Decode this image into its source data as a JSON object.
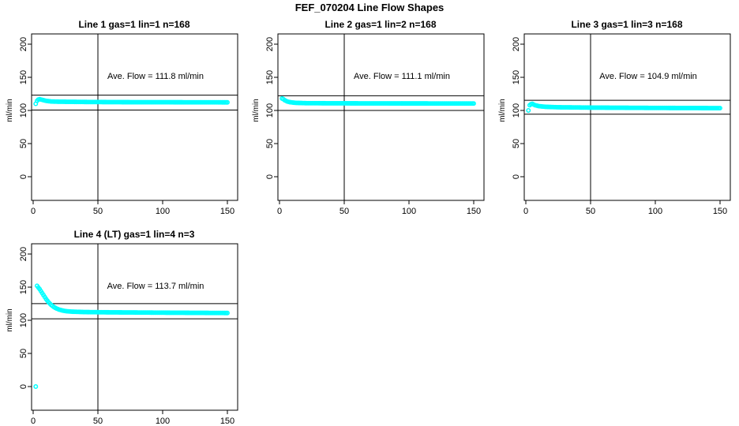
{
  "page": {
    "title": "FEF_070204  Line Flow Shapes"
  },
  "colors": {
    "marker": "#00FFFF",
    "axis": "#000000",
    "background": "#FFFFFF",
    "text": "#000000"
  },
  "chart_data": [
    {
      "type": "scatter",
      "title": "Line 1 gas=1 lin=1 n=168",
      "annotation": "Ave. Flow =  111.8  ml/min",
      "ave_flow_ml_min": 111.8,
      "n": 168,
      "xlabel": "",
      "ylabel": "ml/min",
      "xticks": [
        0,
        50,
        100,
        150
      ],
      "yticks": [
        0,
        50,
        100,
        150,
        200
      ],
      "xlim": [
        -1,
        158
      ],
      "ylim": [
        -36,
        215
      ],
      "grid": false,
      "ref_hlines": [
        123.0,
        100.6
      ],
      "ref_vline": 50,
      "x_range": [
        2,
        150
      ],
      "keypoints": [
        [
          2,
          110
        ],
        [
          3,
          114.5
        ],
        [
          4,
          116.5
        ],
        [
          5,
          117
        ],
        [
          6,
          116.5
        ],
        [
          8,
          115.5
        ],
        [
          10,
          114.5
        ],
        [
          14,
          113.5
        ],
        [
          20,
          113.2
        ],
        [
          40,
          112.8
        ],
        [
          70,
          112.5
        ],
        [
          100,
          112.4
        ],
        [
          150,
          112.2
        ]
      ],
      "extra_points": []
    },
    {
      "type": "scatter",
      "title": "Line 2 gas=1 lin=2 n=168",
      "annotation": "Ave. Flow =  111.1  ml/min",
      "ave_flow_ml_min": 111.1,
      "n": 168,
      "xlabel": "",
      "ylabel": "ml/min",
      "xticks": [
        0,
        50,
        100,
        150
      ],
      "yticks": [
        0,
        50,
        100,
        150,
        200
      ],
      "xlim": [
        -1,
        158
      ],
      "ylim": [
        -36,
        215
      ],
      "grid": false,
      "ref_hlines": [
        122.2,
        100.0
      ],
      "ref_vline": 50,
      "x_range": [
        2,
        150
      ],
      "keypoints": [
        [
          2,
          118
        ],
        [
          3,
          117
        ],
        [
          4,
          115.5
        ],
        [
          6,
          113.5
        ],
        [
          8,
          112.5
        ],
        [
          12,
          111.5
        ],
        [
          20,
          111
        ],
        [
          40,
          110.8
        ],
        [
          80,
          110.6
        ],
        [
          150,
          110.5
        ]
      ],
      "extra_points": []
    },
    {
      "type": "scatter",
      "title": "Line 3 gas=1 lin=3 n=168",
      "annotation": "Ave. Flow =  104.9  ml/min",
      "ave_flow_ml_min": 104.9,
      "n": 168,
      "xlabel": "",
      "ylabel": "ml/min",
      "xticks": [
        0,
        50,
        100,
        150
      ],
      "yticks": [
        0,
        50,
        100,
        150,
        200
      ],
      "xlim": [
        -1,
        158
      ],
      "ylim": [
        -36,
        215
      ],
      "grid": false,
      "ref_hlines": [
        115.4,
        94.4
      ],
      "ref_vline": 50,
      "x_range": [
        2,
        150
      ],
      "keypoints": [
        [
          2,
          100
        ],
        [
          3,
          108
        ],
        [
          4,
          109.5
        ],
        [
          5,
          110
        ],
        [
          7,
          108
        ],
        [
          10,
          106.5
        ],
        [
          15,
          105.5
        ],
        [
          25,
          104.8
        ],
        [
          50,
          104.3
        ],
        [
          100,
          103.8
        ],
        [
          150,
          103.5
        ]
      ],
      "extra_points": []
    },
    {
      "type": "scatter",
      "title": "Line 4 (LT) gas=1 lin=4 n=3",
      "annotation": "Ave. Flow =  113.7  ml/min",
      "ave_flow_ml_min": 113.7,
      "n": 3,
      "xlabel": "",
      "ylabel": "ml/min",
      "xticks": [
        0,
        50,
        100,
        150
      ],
      "yticks": [
        0,
        50,
        100,
        150,
        200
      ],
      "xlim": [
        -1,
        158
      ],
      "ylim": [
        -36,
        215
      ],
      "grid": false,
      "ref_hlines": [
        125.1,
        102.3
      ],
      "ref_vline": 50,
      "x_range": [
        3,
        150
      ],
      "keypoints": [
        [
          3,
          152
        ],
        [
          4,
          149.5
        ],
        [
          5,
          147
        ],
        [
          6,
          144
        ],
        [
          7,
          141
        ],
        [
          8,
          138
        ],
        [
          9,
          135
        ],
        [
          10,
          132
        ],
        [
          11,
          129.5
        ],
        [
          12,
          127
        ],
        [
          13,
          125
        ],
        [
          14,
          123
        ],
        [
          16,
          120
        ],
        [
          18,
          117.8
        ],
        [
          20,
          116.2
        ],
        [
          23,
          114.6
        ],
        [
          26,
          113.6
        ],
        [
          30,
          113
        ],
        [
          40,
          112.4
        ],
        [
          60,
          112
        ],
        [
          100,
          111.5
        ],
        [
          150,
          111
        ]
      ],
      "extra_points": [
        [
          2,
          0
        ]
      ]
    }
  ]
}
